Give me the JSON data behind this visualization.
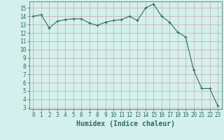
{
  "x": [
    0,
    1,
    2,
    3,
    4,
    5,
    6,
    7,
    8,
    9,
    10,
    11,
    12,
    13,
    14,
    15,
    16,
    17,
    18,
    19,
    20,
    21,
    22,
    23
  ],
  "y": [
    14.0,
    14.2,
    12.6,
    13.4,
    13.6,
    13.7,
    13.7,
    13.2,
    12.9,
    13.3,
    13.5,
    13.6,
    14.0,
    13.5,
    15.0,
    15.5,
    14.0,
    13.3,
    12.1,
    11.5,
    7.5,
    5.3,
    5.3,
    3.2
  ],
  "xlim": [
    -0.5,
    23.5
  ],
  "ylim": [
    2.8,
    15.8
  ],
  "yticks": [
    3,
    4,
    5,
    6,
    7,
    8,
    9,
    10,
    11,
    12,
    13,
    14,
    15
  ],
  "xticks": [
    0,
    1,
    2,
    3,
    4,
    5,
    6,
    7,
    8,
    9,
    10,
    11,
    12,
    13,
    14,
    15,
    16,
    17,
    18,
    19,
    20,
    21,
    22,
    23
  ],
  "xlabel": "Humidex (Indice chaleur)",
  "line_color": "#2d6b62",
  "marker": "+",
  "bg_color": "#d4f0ec",
  "grid_color": "#c8a8a8",
  "tick_fontsize": 5.5,
  "xlabel_fontsize": 7
}
